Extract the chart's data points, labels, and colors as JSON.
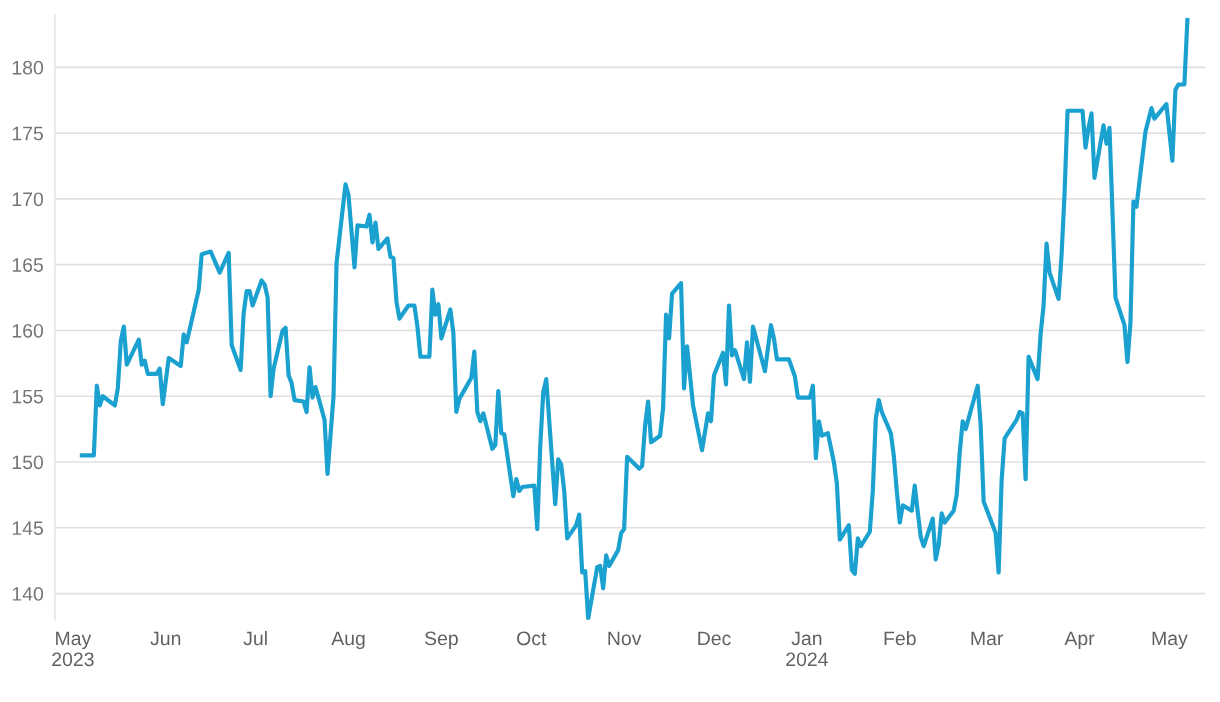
{
  "chart_data": {
    "type": "line",
    "x": [
      "2023-05-04",
      "2023-05-08",
      "2023-05-09",
      "2023-05-10",
      "2023-05-11",
      "2023-05-15",
      "2023-05-16",
      "2023-05-17",
      "2023-05-18",
      "2023-05-19",
      "2023-05-23",
      "2023-05-24",
      "2023-05-25",
      "2023-05-26",
      "2023-05-29",
      "2023-05-30",
      "2023-05-31",
      "2023-06-02",
      "2023-06-06",
      "2023-06-07",
      "2023-06-08",
      "2023-06-12",
      "2023-06-13",
      "2023-06-16",
      "2023-06-19",
      "2023-06-22",
      "2023-06-23",
      "2023-06-26",
      "2023-06-27",
      "2023-06-28",
      "2023-06-29",
      "2023-06-30",
      "2023-07-03",
      "2023-07-04",
      "2023-07-05",
      "2023-07-06",
      "2023-07-07",
      "2023-07-10",
      "2023-07-11",
      "2023-07-12",
      "2023-07-13",
      "2023-07-14",
      "2023-07-17",
      "2023-07-18",
      "2023-07-19",
      "2023-07-20",
      "2023-07-21",
      "2023-07-24",
      "2023-07-25",
      "2023-07-27",
      "2023-07-28",
      "2023-07-31",
      "2023-08-01",
      "2023-08-03",
      "2023-08-04",
      "2023-08-07",
      "2023-08-08",
      "2023-08-09",
      "2023-08-10",
      "2023-08-11",
      "2023-08-14",
      "2023-08-15",
      "2023-08-16",
      "2023-08-17",
      "2023-08-18",
      "2023-08-21",
      "2023-08-23",
      "2023-08-24",
      "2023-08-25",
      "2023-08-28",
      "2023-08-29",
      "2023-08-30",
      "2023-08-31",
      "2023-09-01",
      "2023-09-04",
      "2023-09-05",
      "2023-09-06",
      "2023-09-07",
      "2023-09-11",
      "2023-09-12",
      "2023-09-13",
      "2023-09-14",
      "2023-09-15",
      "2023-09-18",
      "2023-09-19",
      "2023-09-20",
      "2023-09-21",
      "2023-09-22",
      "2023-09-25",
      "2023-09-26",
      "2023-09-27",
      "2023-09-28",
      "2023-10-02",
      "2023-10-03",
      "2023-10-04",
      "2023-10-05",
      "2023-10-06",
      "2023-10-09",
      "2023-10-10",
      "2023-10-11",
      "2023-10-12",
      "2023-10-13",
      "2023-10-16",
      "2023-10-17",
      "2023-10-18",
      "2023-10-19",
      "2023-10-20",
      "2023-10-23",
      "2023-10-24",
      "2023-10-25",
      "2023-10-26",
      "2023-10-27",
      "2023-10-30",
      "2023-10-31",
      "2023-11-01",
      "2023-11-02",
      "2023-11-06",
      "2023-11-07",
      "2023-11-08",
      "2023-11-09",
      "2023-11-10",
      "2023-11-13",
      "2023-11-14",
      "2023-11-15",
      "2023-11-16",
      "2023-11-17",
      "2023-11-20",
      "2023-11-21",
      "2023-11-22",
      "2023-11-24",
      "2023-11-27",
      "2023-11-29",
      "2023-11-30",
      "2023-12-01",
      "2023-12-04",
      "2023-12-05",
      "2023-12-06",
      "2023-12-07",
      "2023-12-08",
      "2023-12-11",
      "2023-12-12",
      "2023-12-13",
      "2023-12-14",
      "2023-12-18",
      "2023-12-20",
      "2023-12-21",
      "2023-12-22",
      "2023-12-26",
      "2023-12-28",
      "2023-12-29",
      "2024-01-02",
      "2024-01-03",
      "2024-01-04",
      "2024-01-05",
      "2024-01-06",
      "2024-01-08",
      "2024-01-10",
      "2024-01-11",
      "2024-01-12",
      "2024-01-15",
      "2024-01-16",
      "2024-01-17",
      "2024-01-18",
      "2024-01-19",
      "2024-01-22",
      "2024-01-23",
      "2024-01-24",
      "2024-01-25",
      "2024-01-26",
      "2024-01-29",
      "2024-01-30",
      "2024-01-31",
      "2024-02-01",
      "2024-02-02",
      "2024-02-05",
      "2024-02-06",
      "2024-02-07",
      "2024-02-08",
      "2024-02-09",
      "2024-02-12",
      "2024-02-13",
      "2024-02-14",
      "2024-02-15",
      "2024-02-16",
      "2024-02-19",
      "2024-02-20",
      "2024-02-21",
      "2024-02-22",
      "2024-02-23",
      "2024-02-27",
      "2024-02-28",
      "2024-02-29",
      "2024-03-04",
      "2024-03-05",
      "2024-03-06",
      "2024-03-07",
      "2024-03-11",
      "2024-03-12",
      "2024-03-13",
      "2024-03-14",
      "2024-03-15",
      "2024-03-18",
      "2024-03-19",
      "2024-03-20",
      "2024-03-21",
      "2024-03-22",
      "2024-03-25",
      "2024-03-26",
      "2024-03-27",
      "2024-03-28",
      "2024-04-02",
      "2024-04-03",
      "2024-04-04",
      "2024-04-05",
      "2024-04-06",
      "2024-04-09",
      "2024-04-10",
      "2024-04-11",
      "2024-04-13",
      "2024-04-16",
      "2024-04-17",
      "2024-04-18",
      "2024-04-19",
      "2024-04-20",
      "2024-04-23",
      "2024-04-25",
      "2024-04-26",
      "2024-04-30",
      "2024-05-02",
      "2024-05-03",
      "2024-05-04",
      "2024-05-06",
      "2024-05-07"
    ],
    "series": [
      {
        "color": "#1ba1cf",
        "values": [
          150.5,
          150.5,
          155.8,
          154.3,
          155.0,
          154.3,
          155.6,
          159.2,
          160.3,
          157.4,
          159.3,
          157.4,
          157.7,
          156.7,
          156.7,
          157.1,
          154.4,
          157.9,
          157.3,
          159.7,
          159.1,
          163.1,
          165.8,
          166.0,
          164.4,
          165.9,
          158.9,
          157.0,
          161.3,
          163.0,
          163.0,
          161.9,
          163.8,
          163.5,
          162.5,
          155.0,
          157.1,
          160.0,
          160.2,
          156.6,
          156.0,
          154.7,
          154.6,
          153.8,
          157.2,
          154.9,
          155.7,
          153.2,
          149.1,
          155.0,
          165.1,
          171.1,
          170.3,
          164.8,
          168.0,
          167.9,
          168.8,
          166.7,
          168.2,
          166.2,
          167.0,
          165.6,
          165.5,
          162.2,
          160.9,
          161.9,
          161.9,
          160.3,
          158.0,
          158.0,
          163.1,
          161.2,
          162.0,
          159.4,
          161.6,
          159.8,
          153.8,
          154.8,
          156.4,
          158.4,
          153.8,
          153.1,
          153.7,
          151.0,
          151.3,
          155.4,
          152.2,
          152.1,
          147.4,
          148.7,
          147.8,
          148.1,
          148.2,
          144.9,
          151.2,
          155.3,
          156.3,
          146.8,
          150.2,
          149.8,
          147.8,
          144.2,
          145.2,
          146.0,
          141.6,
          141.7,
          138.1,
          142.0,
          142.1,
          140.4,
          142.9,
          142.1,
          143.3,
          144.6,
          144.9,
          150.4,
          149.5,
          149.7,
          152.8,
          154.6,
          151.5,
          152.0,
          154.1,
          161.2,
          159.4,
          162.8,
          163.6,
          155.6,
          158.8,
          154.3,
          150.9,
          153.7,
          153.1,
          156.6,
          158.3,
          155.9,
          161.9,
          158.1,
          158.5,
          156.3,
          159.1,
          156.1,
          160.3,
          156.9,
          160.4,
          159.4,
          157.8,
          157.8,
          156.5,
          154.9,
          154.9,
          155.8,
          150.3,
          153.1,
          152.0,
          152.2,
          150.0,
          148.4,
          144.1,
          145.2,
          141.8,
          141.5,
          144.2,
          143.6,
          144.7,
          147.8,
          153.3,
          154.7,
          153.8,
          152.2,
          150.5,
          147.8,
          145.4,
          146.7,
          146.3,
          148.2,
          146.2,
          144.3,
          143.6,
          145.7,
          142.6,
          143.7,
          146.1,
          145.4,
          146.3,
          147.5,
          150.7,
          153.1,
          152.5,
          155.8,
          152.8,
          147.0,
          144.6,
          141.6,
          148.6,
          151.8,
          153.2,
          153.8,
          153.7,
          148.7,
          158.0,
          156.3,
          159.7,
          161.9,
          166.6,
          164.4,
          162.4,
          165.7,
          170.4,
          176.7,
          176.7,
          173.9,
          175.4,
          176.5,
          171.6,
          175.6,
          174.2,
          175.4,
          162.5,
          160.4,
          157.6,
          160.6,
          169.8,
          169.4,
          175.1,
          176.9,
          176.1,
          177.2,
          172.9,
          178.3,
          178.7,
          178.7,
          183.6
        ]
      }
    ],
    "xlim": [
      "2023-04-25",
      "2024-05-13"
    ],
    "xticks": [
      {
        "value": "2023-05-01",
        "label": "May\n2023"
      },
      {
        "value": "2023-06-01",
        "label": "Jun"
      },
      {
        "value": "2023-07-01",
        "label": "Jul"
      },
      {
        "value": "2023-08-01",
        "label": "Aug"
      },
      {
        "value": "2023-09-01",
        "label": "Sep"
      },
      {
        "value": "2023-10-01",
        "label": "Oct"
      },
      {
        "value": "2023-11-01",
        "label": "Nov"
      },
      {
        "value": "2023-12-01",
        "label": "Dec"
      },
      {
        "value": "2024-01-01",
        "label": "Jan\n2024"
      },
      {
        "value": "2024-02-01",
        "label": "Feb"
      },
      {
        "value": "2024-03-01",
        "label": "Mar"
      },
      {
        "value": "2024-04-01",
        "label": "Apr"
      },
      {
        "value": "2024-05-01",
        "label": "May"
      }
    ],
    "ylim": [
      138,
      184
    ],
    "yticks": [
      140,
      145,
      150,
      155,
      160,
      165,
      170,
      175,
      180
    ],
    "grid": "y",
    "legend": false,
    "marker": "none",
    "line_style": "solid"
  }
}
